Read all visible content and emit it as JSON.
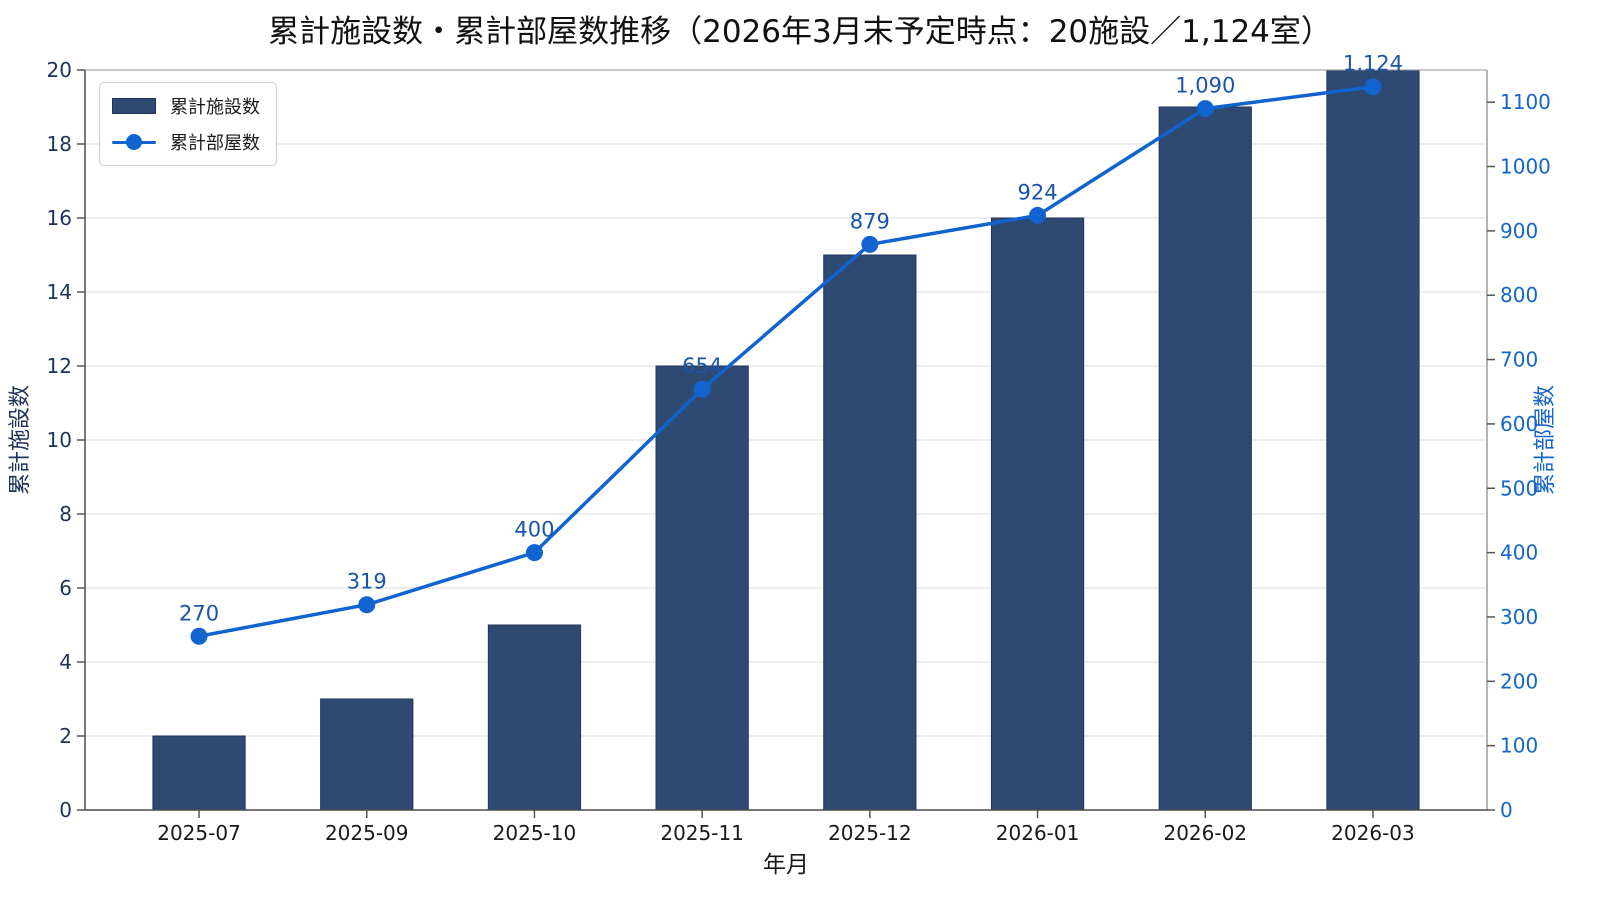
{
  "chart_data": {
    "type": "combo",
    "title": "累計施設数・累計部屋数推移（2026年3月末予定時点：20施設／1,124室）",
    "xlabel": "年月",
    "ylabel_left": "累計施設数",
    "ylabel_right": "累計部屋数",
    "categories": [
      "2025-07",
      "2025-09",
      "2025-10",
      "2025-11",
      "2025-12",
      "2026-01",
      "2026-02",
      "2026-03"
    ],
    "series": [
      {
        "name": "累計施設数",
        "type": "bar",
        "axis": "left",
        "values": [
          2,
          3,
          5,
          12,
          15,
          16,
          19,
          20
        ]
      },
      {
        "name": "累計部屋数",
        "type": "line",
        "axis": "right",
        "values": [
          270,
          319,
          400,
          654,
          879,
          924,
          1090,
          1124
        ],
        "data_labels": [
          "270",
          "319",
          "400",
          "654",
          "879",
          "924",
          "1,090",
          "1,124"
        ]
      }
    ],
    "ylim_left": [
      0,
      20
    ],
    "yticks_left": [
      0,
      2,
      4,
      6,
      8,
      10,
      12,
      14,
      16,
      18,
      20
    ],
    "ylim_right": [
      0,
      1150
    ],
    "yticks_right": [
      0,
      100,
      200,
      300,
      400,
      500,
      600,
      700,
      800,
      900,
      1000,
      1100
    ],
    "grid": "horizontal",
    "legend_position": "upper-left"
  },
  "colors": {
    "bar_fill": "#2f4a72",
    "bar_edge": "#20355a",
    "line": "#1164d0",
    "marker": "#1164d0",
    "data_label": "#1a55a8",
    "left_axis_text": "#1e3357",
    "right_axis_text": "#1565c8",
    "x_tick_text": "#1a1a1a",
    "title_text": "#111111",
    "grid": "#e4e4e8",
    "spine_dark": "#4a4a4a",
    "spine_light": "#9a9aa0",
    "tick_mark": "#555555"
  }
}
